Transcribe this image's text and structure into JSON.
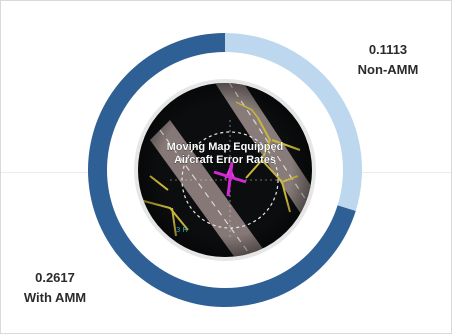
{
  "chart_data": {
    "type": "pie",
    "variant": "donut",
    "title": "Moving Map Equipped Aircraft Error Rates",
    "slices": [
      {
        "label": "Non-AMM",
        "value": 0.1113,
        "value_label": "0.1113",
        "color": "#bdd7ee"
      },
      {
        "label": "With AMM",
        "value": 0.2617,
        "value_label": "0.2617",
        "color": "#2e5f95"
      }
    ],
    "legend": "none"
  },
  "center_image": {
    "icon": "airport-moving-map-icon",
    "caption_line1": "Moving Map Equipped",
    "caption_line2": "Aircraft Error Rates"
  }
}
